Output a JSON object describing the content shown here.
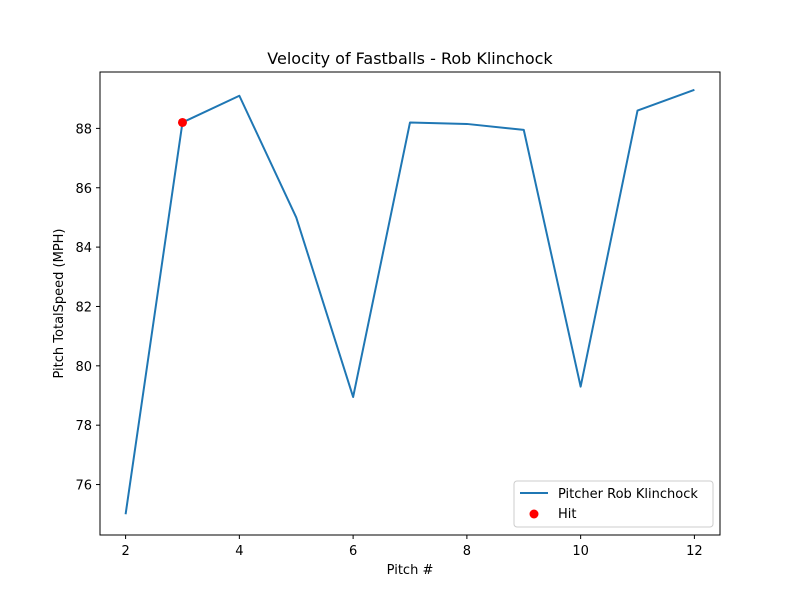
{
  "chart_data": {
    "type": "line",
    "title": "Velocity of Fastballs - Rob Klinchock",
    "xlabel": "Pitch #",
    "ylabel": "Pitch TotalSpeed (MPH)",
    "xlim": [
      1.55,
      12.45
    ],
    "ylim": [
      74.3,
      89.9
    ],
    "xticks": [
      2,
      4,
      6,
      8,
      10,
      12
    ],
    "yticks": [
      76,
      78,
      80,
      82,
      84,
      86,
      88
    ],
    "grid": false,
    "legend_position": "lower right",
    "series": [
      {
        "name": "Pitcher Rob Klinchock",
        "kind": "line",
        "color": "#1f77b4",
        "x": [
          2,
          3,
          4,
          5,
          6,
          7,
          8,
          9,
          10,
          11,
          12
        ],
        "y": [
          75.0,
          88.2,
          89.1,
          85.0,
          78.95,
          88.2,
          88.15,
          87.95,
          79.3,
          88.6,
          89.3
        ]
      },
      {
        "name": "Hit",
        "kind": "scatter",
        "color": "#ff0000",
        "x": [
          3
        ],
        "y": [
          88.2
        ]
      }
    ]
  }
}
